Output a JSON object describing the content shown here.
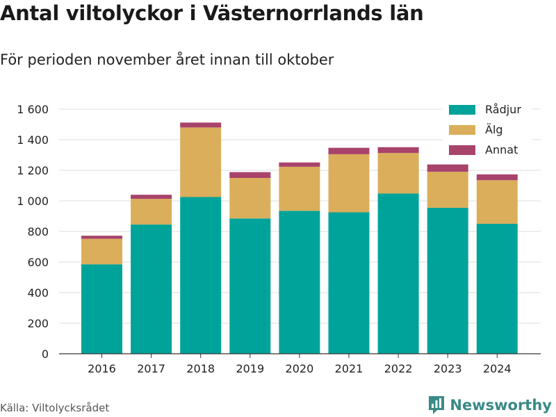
{
  "title": "Antal viltolyckor i Västernorrlands län",
  "subtitle": "För perioden november året innan till oktober",
  "source": "Källa: Viltolycksrådet",
  "brand": "Newsworthy",
  "colors": {
    "radjur": "#00a39a",
    "alg": "#dbae5b",
    "annat": "#a8436c",
    "grid": "#dddddd",
    "axis": "#333333",
    "brand": "#3a8a86"
  },
  "chart_data": {
    "type": "bar",
    "stacked": true,
    "categories": [
      "2016",
      "2017",
      "2018",
      "2019",
      "2020",
      "2021",
      "2022",
      "2023",
      "2024"
    ],
    "series": [
      {
        "name": "Rådjur",
        "color": "#00a39a",
        "values": [
          585,
          845,
          1025,
          885,
          935,
          925,
          1048,
          955,
          850
        ]
      },
      {
        "name": "Älg",
        "color": "#dbae5b",
        "values": [
          167,
          168,
          455,
          265,
          288,
          380,
          265,
          235,
          285
        ]
      },
      {
        "name": "Annat",
        "color": "#a8436c",
        "values": [
          20,
          27,
          32,
          38,
          28,
          42,
          38,
          48,
          38
        ]
      }
    ],
    "ylim": [
      0,
      1600
    ],
    "yticks": [
      0,
      200,
      400,
      600,
      800,
      1000,
      1200,
      1400,
      1600
    ],
    "ytick_labels": [
      "0",
      "200",
      "400",
      "600",
      "800",
      "1 000",
      "1 200",
      "1 400",
      "1 600"
    ],
    "xlabel": "",
    "ylabel": "",
    "grid": true,
    "legend": "top-right"
  }
}
